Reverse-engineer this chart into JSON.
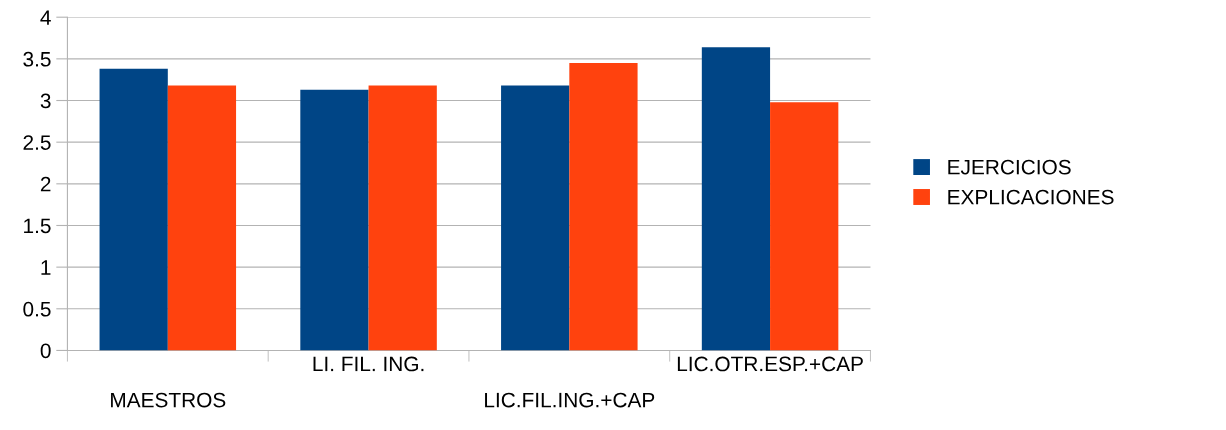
{
  "chart_data": {
    "type": "bar",
    "categories": [
      "MAESTROS",
      "LI. FIL. ING.",
      "LIC.FIL.ING.+CAP",
      "LIC.OTR.ESP.+CAP"
    ],
    "series": [
      {
        "name": "EJERCICIOS",
        "color": "#004586",
        "values": [
          3.38,
          3.13,
          3.18,
          3.64
        ]
      },
      {
        "name": "EXPLICACIONES",
        "color": "#ff420e",
        "values": [
          3.18,
          3.18,
          3.45,
          2.98
        ]
      }
    ],
    "ylim": [
      0,
      4
    ],
    "yticks": [
      0,
      {
        "value": 0.5,
        "label": "0.5"
      },
      1,
      {
        "value": 1.5,
        "label": "1.5"
      },
      2,
      {
        "value": 2.5,
        "label": "2.5"
      },
      3,
      {
        "value": 3.5,
        "label": "3.5"
      },
      4
    ],
    "grid": "y",
    "legend": "right"
  }
}
